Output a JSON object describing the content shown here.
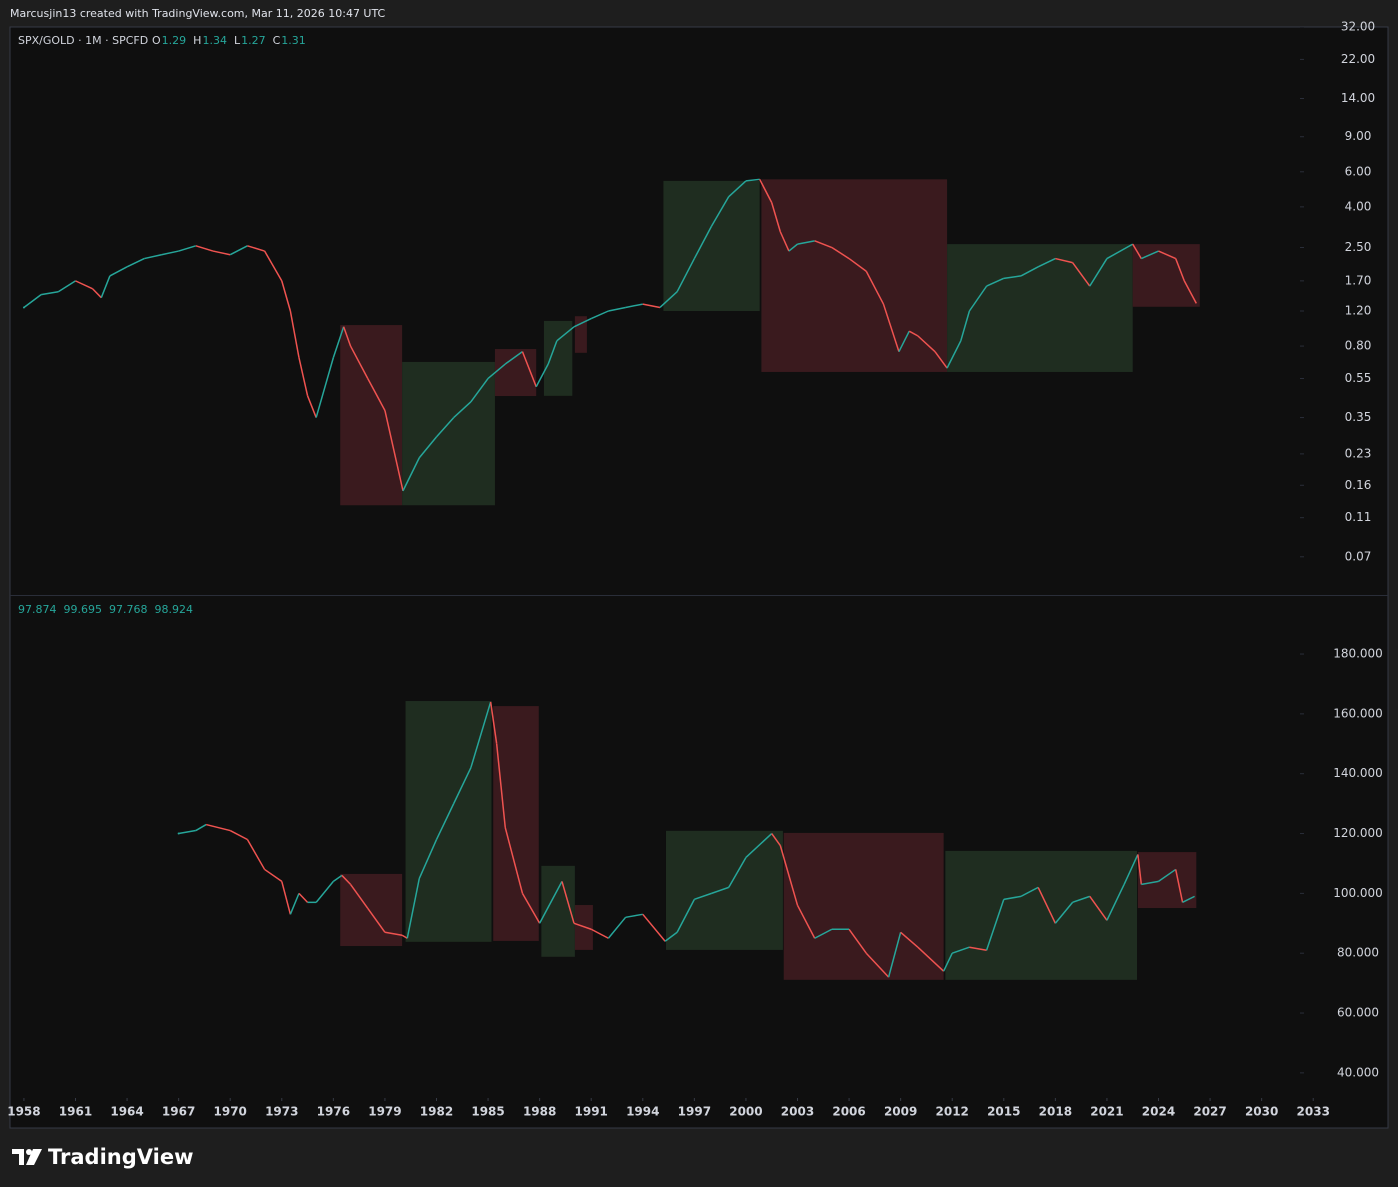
{
  "header": "Marcusjin13 created with TradingView.com, Mar 11, 2026 10:47 UTC",
  "footer": {
    "brand": "TradingView"
  },
  "chart_data": [
    {
      "type": "line",
      "title": "SPX/GOLD · 1M · SPCFD",
      "log_scale": true,
      "ohlc": [
        {
          "label": "O",
          "value": 1.29
        },
        {
          "label": "H",
          "value": 1.34
        },
        {
          "label": "L",
          "value": 1.27
        },
        {
          "label": "C",
          "value": 1.31
        }
      ],
      "xlim": [
        1957.19,
        2037.35
      ],
      "ylim": [
        0.045,
        32
      ],
      "yticks": [
        {
          "value": 32,
          "label": "32.00"
        },
        {
          "value": 22,
          "label": "22.00"
        },
        {
          "value": 14,
          "label": "14.00"
        },
        {
          "value": 9,
          "label": "9.00"
        },
        {
          "value": 6,
          "label": "6.00"
        },
        {
          "value": 4,
          "label": "4.00"
        },
        {
          "value": 2.5,
          "label": "2.50"
        },
        {
          "value": 1.7,
          "label": "1.70"
        },
        {
          "value": 1.2,
          "label": "1.20"
        },
        {
          "value": 0.8,
          "label": "0.80"
        },
        {
          "value": 0.55,
          "label": "0.55"
        },
        {
          "value": 0.35,
          "label": "0.35"
        },
        {
          "value": 0.23,
          "label": "0.23"
        },
        {
          "value": 0.16,
          "label": "0.16"
        },
        {
          "value": 0.11,
          "label": "0.11"
        },
        {
          "value": 0.07,
          "label": "0.07"
        }
      ],
      "series": [
        {
          "up_color": "#26a69a",
          "down_color": "#ef5350",
          "x": [
            1958,
            1959,
            1960,
            1961,
            1962,
            1962.5,
            1963,
            1964,
            1965,
            1966,
            1967,
            1968,
            1969,
            1970,
            1971,
            1972,
            1973,
            1973.5,
            1974,
            1974.5,
            1975,
            1976,
            1976.6,
            1977,
            1978,
            1979,
            1980.05,
            1981,
            1982,
            1983,
            1984,
            1985,
            1986,
            1987,
            1987.8,
            1988.5,
            1989,
            1990,
            1991,
            1992,
            1993,
            1994,
            1995,
            1996,
            1997,
            1998,
            1999,
            2000,
            2000.8,
            2001.5,
            2002,
            2002.5,
            2003,
            2004,
            2005,
            2006,
            2007,
            2008,
            2008.9,
            2009.5,
            2010,
            2011,
            2011.7,
            2012.5,
            2013,
            2014,
            2015,
            2016,
            2017,
            2018,
            2019,
            2020,
            2021,
            2022.5,
            2023,
            2024,
            2025,
            2025.5,
            2026.2
          ],
          "values": [
            1.25,
            1.45,
            1.5,
            1.7,
            1.55,
            1.4,
            1.8,
            2.0,
            2.2,
            2.3,
            2.4,
            2.55,
            2.4,
            2.3,
            2.55,
            2.4,
            1.7,
            1.2,
            0.7,
            0.45,
            0.35,
            0.7,
            1.0,
            0.8,
            0.55,
            0.38,
            0.15,
            0.22,
            0.28,
            0.35,
            0.42,
            0.55,
            0.65,
            0.75,
            0.5,
            0.65,
            0.85,
            1.0,
            1.1,
            1.2,
            1.25,
            1.3,
            1.25,
            1.5,
            2.2,
            3.2,
            4.5,
            5.4,
            5.5,
            4.2,
            3.0,
            2.4,
            2.6,
            2.7,
            2.5,
            2.2,
            1.9,
            1.3,
            0.75,
            0.95,
            0.9,
            0.75,
            0.62,
            0.85,
            1.2,
            1.6,
            1.75,
            1.8,
            2.0,
            2.2,
            2.1,
            1.6,
            2.2,
            2.6,
            2.2,
            2.4,
            2.2,
            1.7,
            1.31
          ]
        }
      ],
      "zones": [
        {
          "x": [
            1976.4,
            1980.0
          ],
          "y": [
            0.127,
            1.02
          ],
          "color": "#3a1a1e"
        },
        {
          "x": [
            1980.0,
            1985.4
          ],
          "y": [
            0.127,
            0.666
          ],
          "color": "#1f2d20"
        },
        {
          "x": [
            1985.4,
            1987.8
          ],
          "y": [
            0.449,
            0.773
          ],
          "color": "#3a1a1e"
        },
        {
          "x": [
            1988.25,
            1989.9
          ],
          "y": [
            0.45,
            1.07
          ],
          "color": "#1f2d20"
        },
        {
          "x": [
            1990.05,
            1990.75
          ],
          "y": [
            0.74,
            1.13
          ],
          "color": "#3a1a1e"
        },
        {
          "x": [
            1995.2,
            2000.8
          ],
          "y": [
            1.2,
            5.4
          ],
          "color": "#1f2d20"
        },
        {
          "x": [
            2000.9,
            2011.7
          ],
          "y": [
            0.593,
            5.5
          ],
          "color": "#3a1a1e"
        },
        {
          "x": [
            2011.7,
            2022.5
          ],
          "y": [
            0.593,
            2.6
          ],
          "color": "#1f2d20"
        },
        {
          "x": [
            2022.5,
            2026.4
          ],
          "y": [
            1.26,
            2.6
          ],
          "color": "#3a1a1e"
        }
      ]
    },
    {
      "type": "line",
      "ohlc": [
        {
          "value": 97.874
        },
        {
          "value": 99.695
        },
        {
          "value": 97.768
        },
        {
          "value": 98.924
        }
      ],
      "xlim": [
        1957.19,
        2037.35
      ],
      "ylim": [
        31.6,
        199.4
      ],
      "xticks": [
        1958,
        1961,
        1964,
        1967,
        1970,
        1973,
        1976,
        1979,
        1982,
        1985,
        1988,
        1991,
        1994,
        1997,
        2000,
        2003,
        2006,
        2009,
        2012,
        2015,
        2018,
        2021,
        2024,
        2027,
        2030,
        2033
      ],
      "yticks": [
        {
          "value": 180,
          "label": "180.000"
        },
        {
          "value": 160,
          "label": "160.000"
        },
        {
          "value": 140,
          "label": "140.000"
        },
        {
          "value": 120,
          "label": "120.000"
        },
        {
          "value": 100,
          "label": "100.000"
        },
        {
          "value": 80,
          "label": "80.000"
        },
        {
          "value": 60,
          "label": "60.000"
        },
        {
          "value": 40,
          "label": "40.000"
        }
      ],
      "series": [
        {
          "up_color": "#26a69a",
          "down_color": "#ef5350",
          "x": [
            1967,
            1968,
            1968.6,
            1970,
            1971,
            1972,
            1973,
            1973.5,
            1974,
            1974.5,
            1975,
            1976,
            1976.5,
            1977,
            1978,
            1979,
            1980,
            1980.3,
            1981,
            1982,
            1983,
            1984,
            1985.15,
            1985.5,
            1986,
            1987,
            1988,
            1989.3,
            1990,
            1991,
            1992,
            1993,
            1994,
            1995.3,
            1996,
            1997,
            1998,
            1999,
            2000,
            2001.5,
            2002,
            2003,
            2004,
            2005,
            2006,
            2007,
            2008.3,
            2009,
            2010,
            2011.5,
            2012,
            2013,
            2014,
            2015,
            2016,
            2017,
            2018,
            2019,
            2020,
            2021,
            2022,
            2022.8,
            2023,
            2024,
            2025,
            2025.4,
            2026.1
          ],
          "values": [
            120,
            121,
            123,
            121,
            118,
            108,
            104,
            93,
            100,
            97,
            97,
            104,
            106,
            103,
            95,
            87,
            86,
            85,
            105,
            118,
            130,
            142,
            164,
            150,
            122,
            100,
            90,
            104,
            90,
            88,
            85,
            92,
            93,
            84,
            87,
            98,
            100,
            102,
            112,
            120,
            116,
            96,
            85,
            88,
            88,
            80,
            72,
            87,
            82,
            74,
            80,
            82,
            81,
            98,
            99,
            102,
            90,
            97,
            99,
            91,
            103,
            113,
            103,
            104,
            108,
            97,
            99
          ]
        }
      ],
      "zones": [
        {
          "x": [
            1976.4,
            1980.0
          ],
          "y": [
            82.4,
            106.5
          ],
          "color": "#3a1a1e"
        },
        {
          "x": [
            1980.2,
            1985.2
          ],
          "y": [
            83.8,
            164.3
          ],
          "color": "#1f2d20"
        },
        {
          "x": [
            1985.3,
            1987.95
          ],
          "y": [
            84.1,
            162.6
          ],
          "color": "#3a1a1e"
        },
        {
          "x": [
            1988.1,
            1990.05
          ],
          "y": [
            78.8,
            109.2
          ],
          "color": "#1f2d20"
        },
        {
          "x": [
            1990.05,
            1991.1
          ],
          "y": [
            81.1,
            96.1
          ],
          "color": "#3a1a1e"
        },
        {
          "x": [
            1995.35,
            2002.15
          ],
          "y": [
            81.1,
            120.9
          ],
          "color": "#1f2d20"
        },
        {
          "x": [
            2002.2,
            2011.5
          ],
          "y": [
            71.1,
            120.2
          ],
          "color": "#3a1a1e"
        },
        {
          "x": [
            2011.6,
            2022.75
          ],
          "y": [
            71.1,
            114.2
          ],
          "color": "#1f2d20"
        },
        {
          "x": [
            2022.8,
            2026.2
          ],
          "y": [
            95.1,
            113.8
          ],
          "color": "#3a1a1e"
        }
      ]
    }
  ]
}
